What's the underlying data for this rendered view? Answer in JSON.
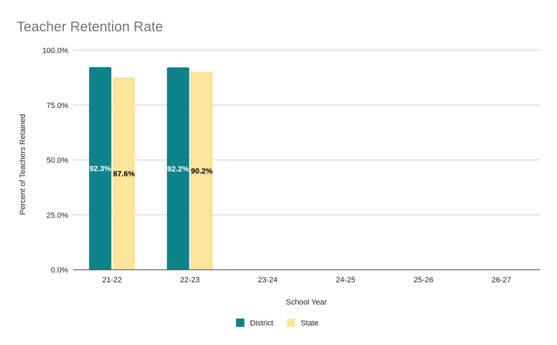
{
  "chart_data": {
    "type": "bar",
    "title": "Teacher Retention Rate",
    "xlabel": "School Year",
    "ylabel": "Percent of Teachers Retained",
    "categories": [
      "21-22",
      "22-23",
      "23-24",
      "24-25",
      "25-26",
      "26-27"
    ],
    "series": [
      {
        "name": "District",
        "color": "#0e8389",
        "values": [
          92.3,
          92.2,
          null,
          null,
          null,
          null
        ],
        "labels": [
          "92.3%",
          "92.2%",
          "",
          "",
          "",
          ""
        ]
      },
      {
        "name": "State",
        "color": "#fde49b",
        "values": [
          87.6,
          90.2,
          null,
          null,
          null,
          null
        ],
        "labels": [
          "87.6%",
          "90.2%",
          "",
          "",
          "",
          ""
        ]
      }
    ],
    "yticks": [
      "0.0%",
      "25.0%",
      "50.0%",
      "75.0%",
      "100.0%"
    ],
    "ylim": [
      0,
      100
    ],
    "grid": true,
    "legend": "bottom"
  }
}
